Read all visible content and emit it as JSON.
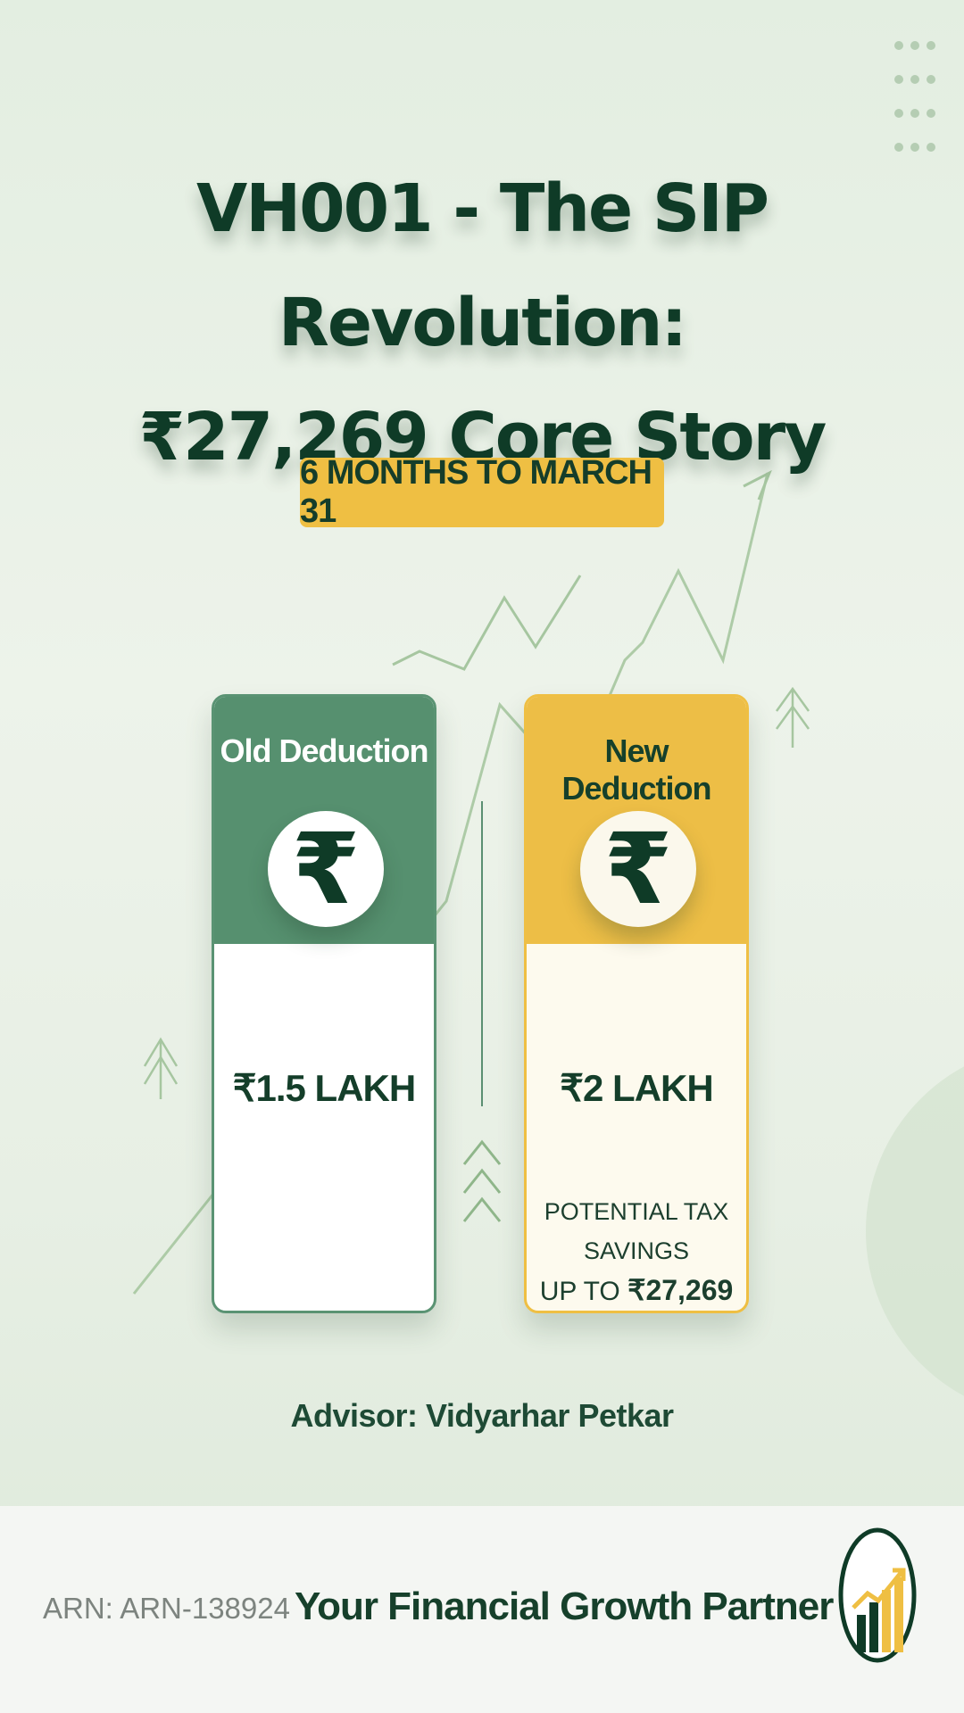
{
  "title": {
    "line1": "VH001 - The SIP Revolution:",
    "line2": "₹27,269 Core Story"
  },
  "badge": "6 MONTHS TO MARCH 31",
  "cards": [
    {
      "label": "Old Deduction",
      "symbol": "₹",
      "amount": "₹1.5 LAKH"
    },
    {
      "label": "New Deduction",
      "symbol": "₹",
      "amount": "₹2 LAKH",
      "note_line1": "POTENTIAL TAX SAVINGS",
      "note_line2_prefix": "UP TO ",
      "note_line2_value": "₹27,269"
    }
  ],
  "advisor": "Advisor: Vidyarhar Petkar",
  "footer": {
    "arn": "ARN: ARN-138924",
    "tagline": "Your Financial Growth Partner"
  },
  "colors": {
    "green": "#56906f",
    "gold": "#efbf43",
    "dark_green": "#0f3b27"
  },
  "icons": [
    "rupee-icon",
    "growth-chart-logo-icon",
    "chevron-up-icon",
    "trend-arrow-icon"
  ]
}
